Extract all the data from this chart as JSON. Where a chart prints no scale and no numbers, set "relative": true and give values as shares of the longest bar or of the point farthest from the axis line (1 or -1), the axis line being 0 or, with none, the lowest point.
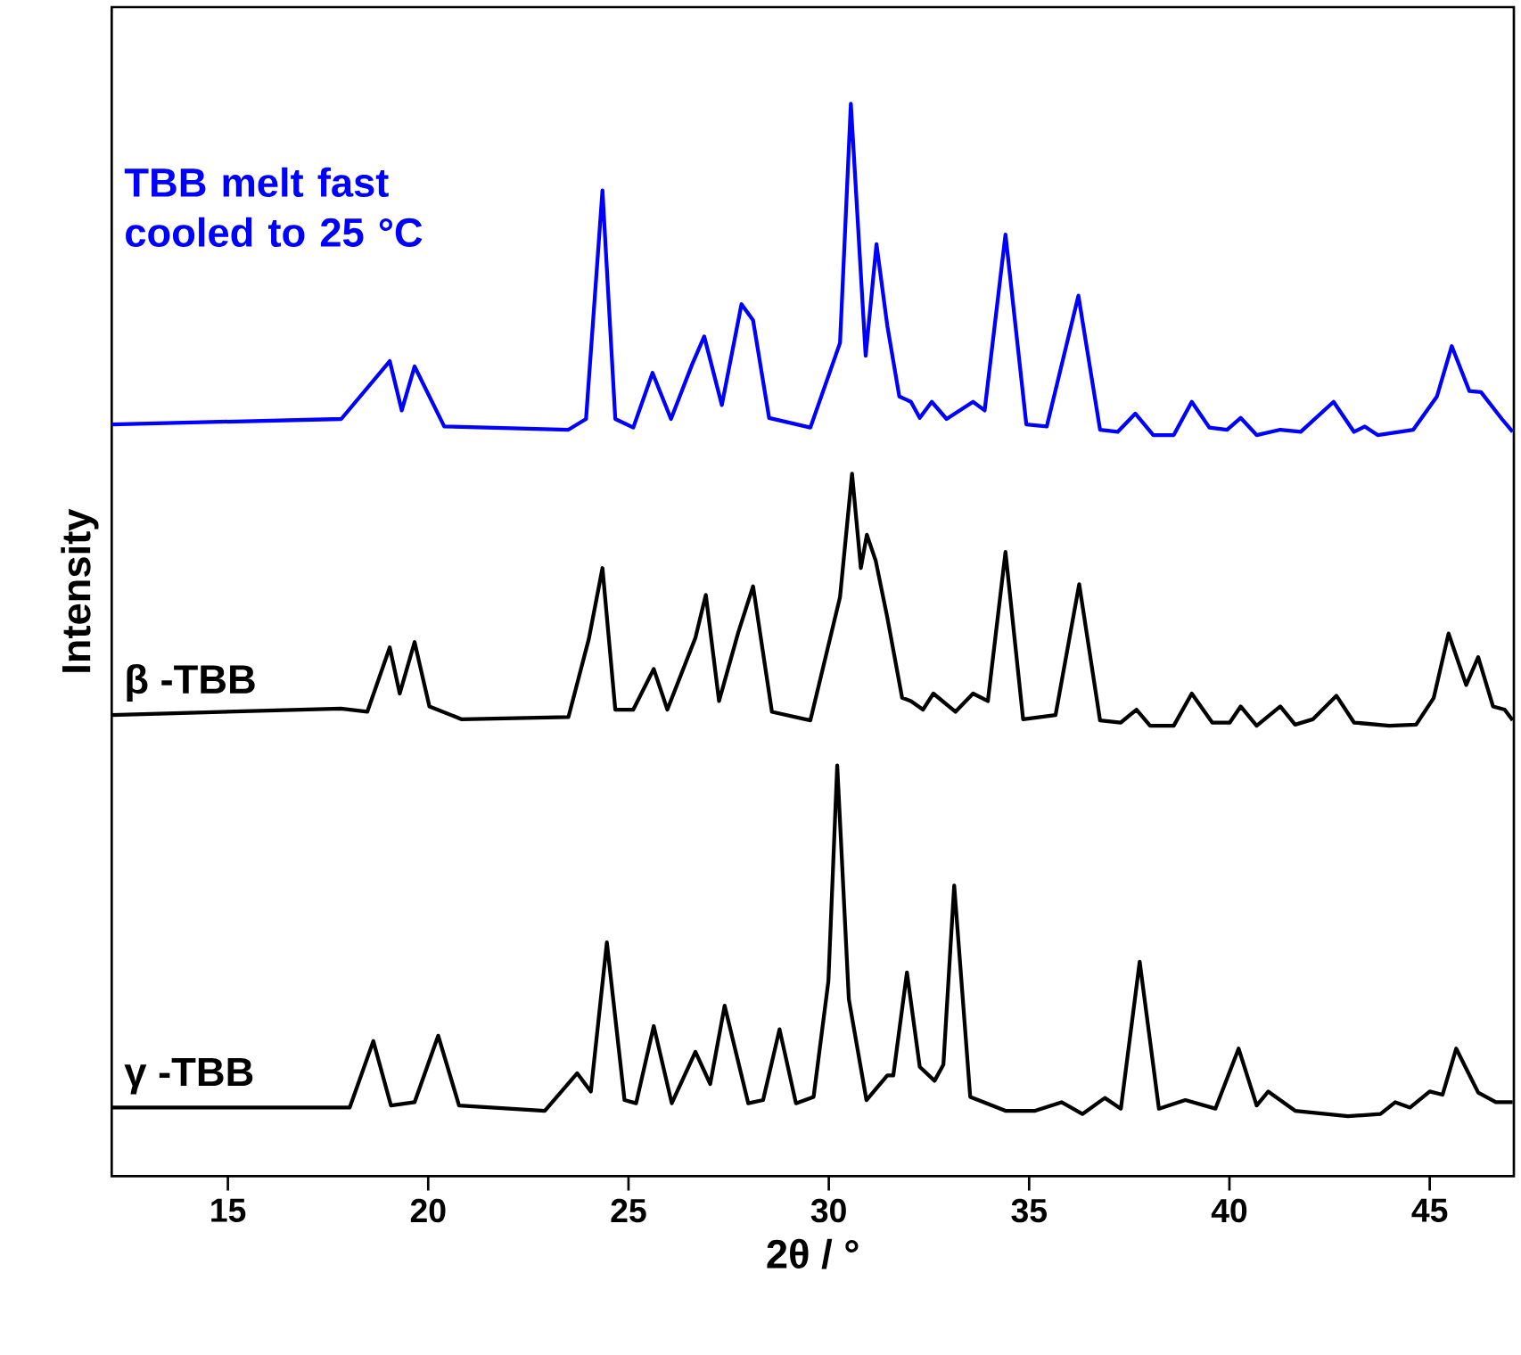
{
  "chart_data": {
    "type": "line",
    "xlabel": "2θ / °",
    "ylabel": "Intensity",
    "relative": true,
    "xlim": [
      12.1,
      47.1
    ],
    "xticks": [
      15,
      20,
      25,
      30,
      35,
      40,
      45
    ],
    "tick_labels": "x",
    "grid": false,
    "legend": false,
    "series": [
      {
        "name": "TBB melt fast cooled to 25 °C",
        "color": "#0000ff",
        "x": [
          12.1,
          17.83,
          19.04,
          19.34,
          19.66,
          20.4,
          23.5,
          23.94,
          24.35,
          24.67,
          25.12,
          25.6,
          26.06,
          26.59,
          26.89,
          27.33,
          27.82,
          28.11,
          28.51,
          29.54,
          30.28,
          30.55,
          30.92,
          31.19,
          31.46,
          31.76,
          32.05,
          32.27,
          32.57,
          32.94,
          33.6,
          33.89,
          34.41,
          34.93,
          35.44,
          36.23,
          36.77,
          37.21,
          37.65,
          38.1,
          38.61,
          39.06,
          39.5,
          39.94,
          40.28,
          40.68,
          41.27,
          41.78,
          42.6,
          43.11,
          43.38,
          43.7,
          44.59,
          45.18,
          45.55,
          45.99,
          46.28,
          46.8,
          47.07
        ],
        "values": [
          0.701,
          0.706,
          0.76,
          0.714,
          0.755,
          0.699,
          0.696,
          0.706,
          0.919,
          0.706,
          0.698,
          0.749,
          0.706,
          0.757,
          0.783,
          0.719,
          0.813,
          0.798,
          0.707,
          0.698,
          0.777,
          1.0,
          0.765,
          0.869,
          0.793,
          0.727,
          0.722,
          0.707,
          0.722,
          0.706,
          0.722,
          0.714,
          0.878,
          0.701,
          0.699,
          0.821,
          0.696,
          0.694,
          0.711,
          0.691,
          0.691,
          0.722,
          0.698,
          0.696,
          0.707,
          0.691,
          0.696,
          0.694,
          0.722,
          0.694,
          0.699,
          0.691,
          0.696,
          0.727,
          0.774,
          0.732,
          0.731,
          0.706,
          0.694
        ]
      },
      {
        "name": "β -TBB",
        "color": "#000000",
        "x": [
          12.1,
          17.82,
          18.48,
          19.04,
          19.29,
          19.66,
          20.03,
          20.84,
          23.5,
          24.01,
          24.35,
          24.67,
          25.12,
          25.63,
          25.97,
          26.67,
          26.93,
          27.26,
          27.74,
          28.11,
          28.58,
          29.54,
          30.28,
          30.58,
          30.8,
          30.95,
          31.17,
          31.46,
          31.83,
          32.05,
          32.35,
          32.61,
          33.16,
          33.6,
          33.97,
          34.41,
          34.85,
          35.66,
          36.25,
          36.77,
          37.29,
          37.68,
          38.02,
          38.61,
          39.06,
          39.57,
          40.01,
          40.28,
          40.68,
          41.27,
          41.64,
          42.08,
          42.67,
          43.11,
          43.99,
          44.66,
          45.1,
          45.47,
          45.91,
          46.21,
          46.58,
          46.87,
          47.07
        ],
        "values": [
          0.43,
          0.436,
          0.433,
          0.493,
          0.45,
          0.498,
          0.438,
          0.426,
          0.428,
          0.501,
          0.567,
          0.435,
          0.435,
          0.473,
          0.435,
          0.502,
          0.542,
          0.443,
          0.507,
          0.55,
          0.433,
          0.425,
          0.54,
          0.655,
          0.567,
          0.598,
          0.574,
          0.521,
          0.446,
          0.443,
          0.435,
          0.45,
          0.433,
          0.45,
          0.443,
          0.582,
          0.426,
          0.43,
          0.552,
          0.425,
          0.423,
          0.435,
          0.42,
          0.42,
          0.45,
          0.423,
          0.423,
          0.438,
          0.42,
          0.438,
          0.421,
          0.426,
          0.448,
          0.423,
          0.42,
          0.421,
          0.446,
          0.506,
          0.458,
          0.484,
          0.438,
          0.435,
          0.425
        ]
      },
      {
        "name": "γ -TBB",
        "color": "#000000",
        "x": [
          12.1,
          18.04,
          18.63,
          19.07,
          19.66,
          20.25,
          20.77,
          22.91,
          23.72,
          24.06,
          24.46,
          24.9,
          25.19,
          25.63,
          26.08,
          26.67,
          27.04,
          27.4,
          27.99,
          28.36,
          28.77,
          29.18,
          29.62,
          29.99,
          30.21,
          30.5,
          30.94,
          31.46,
          31.61,
          31.95,
          32.27,
          32.64,
          32.86,
          33.13,
          33.53,
          34.41,
          35.15,
          35.81,
          36.33,
          36.89,
          37.29,
          37.76,
          38.24,
          38.9,
          39.65,
          40.23,
          40.68,
          40.97,
          41.64,
          42.96,
          43.77,
          44.14,
          44.51,
          45.0,
          45.32,
          45.66,
          46.21,
          46.65,
          47.07
        ],
        "values": [
          0.064,
          0.064,
          0.126,
          0.066,
          0.069,
          0.131,
          0.066,
          0.061,
          0.096,
          0.079,
          0.218,
          0.071,
          0.068,
          0.14,
          0.068,
          0.116,
          0.086,
          0.159,
          0.068,
          0.071,
          0.137,
          0.068,
          0.074,
          0.182,
          0.383,
          0.165,
          0.071,
          0.094,
          0.094,
          0.19,
          0.102,
          0.089,
          0.104,
          0.271,
          0.074,
          0.061,
          0.061,
          0.069,
          0.058,
          0.073,
          0.063,
          0.2,
          0.063,
          0.071,
          0.063,
          0.119,
          0.066,
          0.079,
          0.061,
          0.056,
          0.058,
          0.069,
          0.064,
          0.079,
          0.076,
          0.119,
          0.078,
          0.069,
          0.069
        ]
      }
    ]
  }
}
